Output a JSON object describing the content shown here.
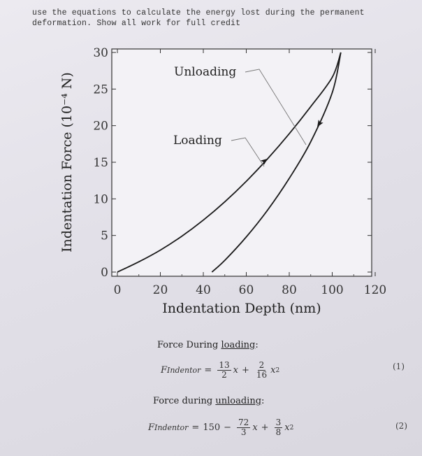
{
  "instructions": {
    "line1": "use the equations to calculate the energy lost during the permanent",
    "line2": "deformation. Show all work for full credit"
  },
  "chart_data": {
    "type": "line",
    "title": "",
    "xlabel": "Indentation Depth (nm)",
    "ylabel": "Indentation Force (10⁻⁴ N)",
    "xlim": [
      0,
      120
    ],
    "ylim": [
      0,
      30
    ],
    "x_ticks": [
      "0",
      "20",
      "40",
      "60",
      "80",
      "100",
      "120"
    ],
    "y_ticks": [
      "0",
      "5",
      "10",
      "15",
      "20",
      "25",
      "30"
    ],
    "grid": false,
    "series": [
      {
        "name": "Loading",
        "x": [
          0,
          10,
          20,
          30,
          40,
          50,
          60,
          70,
          80,
          90,
          100,
          104
        ],
        "y": [
          0,
          1.4,
          3.0,
          4.9,
          7.1,
          9.6,
          12.4,
          15.5,
          18.9,
          22.6,
          26.6,
          30
        ]
      },
      {
        "name": "Unloading",
        "x": [
          44,
          50,
          60,
          70,
          80,
          90,
          100,
          104
        ],
        "y": [
          0,
          1.6,
          4.8,
          8.5,
          12.8,
          17.8,
          24.5,
          30
        ]
      }
    ],
    "annotations": [
      "Unloading",
      "Loading"
    ]
  },
  "sections": {
    "loading_title_prefix": "Force During ",
    "loading_title_word": "loading",
    "loading_title_suffix": ":",
    "unloading_title_prefix": "Force during ",
    "unloading_title_word": "unloading",
    "unloading_title_suffix": ":"
  },
  "eq1": {
    "lhs": "F",
    "lhs_sub": "Indentor",
    "eqsign": "=",
    "f1_num": "13",
    "f1_den": "2",
    "term1": "x",
    "plus": "+",
    "f2_num": "2",
    "f2_den": "16",
    "term2": "x",
    "term2_exp": "2",
    "number": "(1)"
  },
  "eq2": {
    "lhs": "F",
    "lhs_sub": "Indentor",
    "eqsign": "=",
    "const": "150",
    "minus": "−",
    "f1_num": "72",
    "f1_den": "3",
    "term1": "x",
    "plus": "+",
    "f2_num": "3",
    "f2_den": "8",
    "term2": "x",
    "term2_exp": "2",
    "number": "(2)"
  }
}
